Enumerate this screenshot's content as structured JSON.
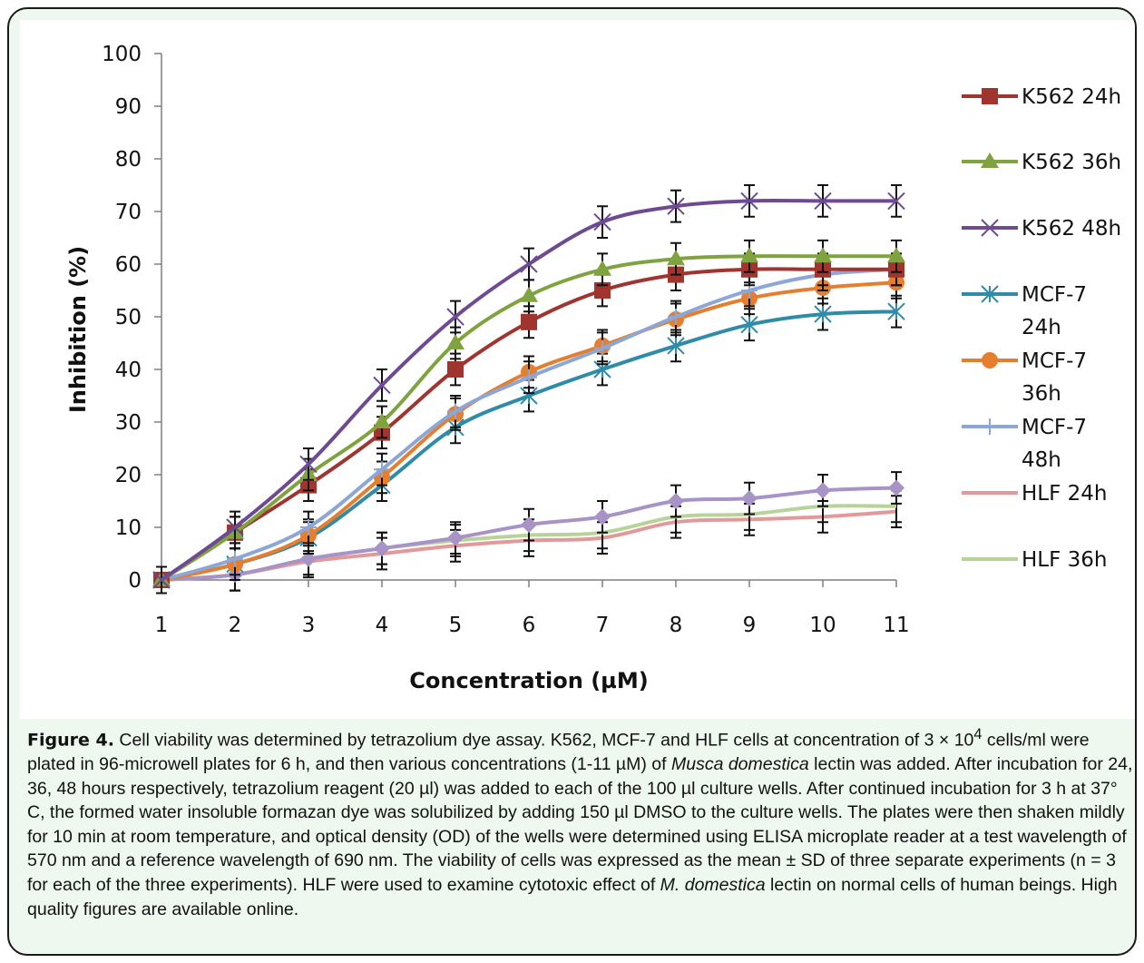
{
  "chart_data": {
    "type": "line",
    "xlabel": "Concentration (µM)",
    "ylabel": "Inhibition (%)",
    "x": [
      1,
      2,
      3,
      4,
      5,
      6,
      7,
      8,
      9,
      10,
      11
    ],
    "ylim": [
      0,
      100
    ],
    "yticks": [
      0,
      10,
      20,
      30,
      40,
      50,
      60,
      70,
      80,
      90,
      100
    ],
    "grid": false,
    "legend_position": "right",
    "series": [
      {
        "name": "K562 24h",
        "color": "#a0342f",
        "marker": "square",
        "values": [
          0,
          9,
          18,
          28,
          40,
          49,
          55,
          58,
          59,
          59,
          59
        ],
        "errors": [
          2.5,
          3,
          3,
          3,
          3,
          3,
          3,
          3,
          3,
          3,
          3
        ]
      },
      {
        "name": "K562 36h",
        "color": "#7fa33e",
        "marker": "triangle",
        "values": [
          0,
          9,
          20,
          30,
          45,
          54,
          59,
          61,
          61.5,
          61.5,
          61.5
        ],
        "errors": [
          2.5,
          3,
          3,
          3,
          3,
          3,
          3,
          3,
          3,
          3,
          3
        ]
      },
      {
        "name": "K562 48h",
        "color": "#6d4a92",
        "marker": "x",
        "values": [
          0,
          10,
          22,
          37,
          50,
          60,
          68,
          71,
          72,
          72,
          72
        ],
        "errors": [
          2.5,
          3,
          3,
          3,
          3,
          3,
          3,
          3,
          3,
          3,
          3
        ]
      },
      {
        "name": "MCF-7 24h",
        "color": "#2f8ba8",
        "marker": "asterisk",
        "values": [
          0,
          3,
          8,
          18,
          29,
          35,
          40,
          44.5,
          48.5,
          50.5,
          51
        ],
        "errors": [
          2.5,
          3,
          3,
          3,
          3,
          3,
          3,
          3,
          3,
          3,
          3
        ]
      },
      {
        "name": "MCF-7 36h",
        "color": "#e57e2e",
        "marker": "circle",
        "values": [
          0,
          3,
          8.5,
          19.5,
          31.5,
          39.5,
          44.5,
          49.5,
          53.5,
          55.5,
          56.5
        ],
        "errors": [
          2.5,
          3,
          3,
          3,
          3,
          3,
          3,
          3,
          3,
          3,
          3
        ]
      },
      {
        "name": "MCF-7 48h",
        "color": "#8ca7d6",
        "marker": "plus",
        "values": [
          0,
          4,
          10,
          21,
          32,
          38.5,
          44,
          50,
          55,
          58,
          59
        ],
        "errors": [
          2.5,
          3,
          3,
          3,
          3,
          3,
          3,
          3,
          3,
          3,
          3
        ]
      },
      {
        "name": "HLF 24h",
        "color": "#e19a99",
        "marker": "none",
        "values": [
          0,
          1,
          3.5,
          5,
          6.5,
          7.5,
          8,
          11,
          11.5,
          12,
          13
        ],
        "errors": [
          2.5,
          3,
          3,
          3,
          3,
          3,
          3,
          3,
          3,
          3,
          3
        ]
      },
      {
        "name": "HLF 36h",
        "color": "#b8d39a",
        "marker": "none",
        "values": [
          0,
          1,
          4,
          6,
          7.5,
          8.5,
          9,
          12,
          12.5,
          14,
          14
        ],
        "errors": [
          2.5,
          3,
          3,
          3,
          3,
          3,
          3,
          3,
          3,
          3,
          3
        ]
      },
      {
        "name": "",
        "color": "#a793c6",
        "marker": "diamond",
        "values": [
          0,
          1,
          4,
          6,
          8,
          10.5,
          12,
          15,
          15.5,
          17,
          17.5
        ],
        "errors": [
          2.5,
          3,
          3,
          3,
          3,
          3,
          3,
          3,
          3,
          3,
          3
        ]
      }
    ]
  },
  "caption": {
    "label": "Figure 4.",
    "text_1": " Cell viability was determined by tetrazolium dye assay. K562, MCF-7 and HLF cells at concentration of 3 × 10",
    "sup": "4",
    "text_2": " cells/ml were plated in 96-microwell plates for 6 h, and then various concentrations (1-11 µM) of ",
    "italic_1": "Musca domestica",
    "text_3": " lectin was added. After incubation for 24, 36, 48 hours respectively, tetrazolium reagent (20 µl) was added to each of the 100 µl culture wells. After continued incubation for 3 h at 37° C, the formed water insoluble formazan dye was solubilized by adding 150 µl DMSO to the culture wells. The plates were then shaken mildly for 10 min at room temperature, and optical density (OD) of the wells were determined using ELISA microplate reader at a test wavelength of 570 nm and a reference wavelength of 690 nm. The viability of cells was expressed as the mean ± SD of three separate experiments (n = 3 for each of the three experiments). HLF were used to examine cytotoxic effect of ",
    "italic_2": "M. domestica",
    "text_4": " lectin on normal cells of human beings. High quality figures are available online."
  }
}
